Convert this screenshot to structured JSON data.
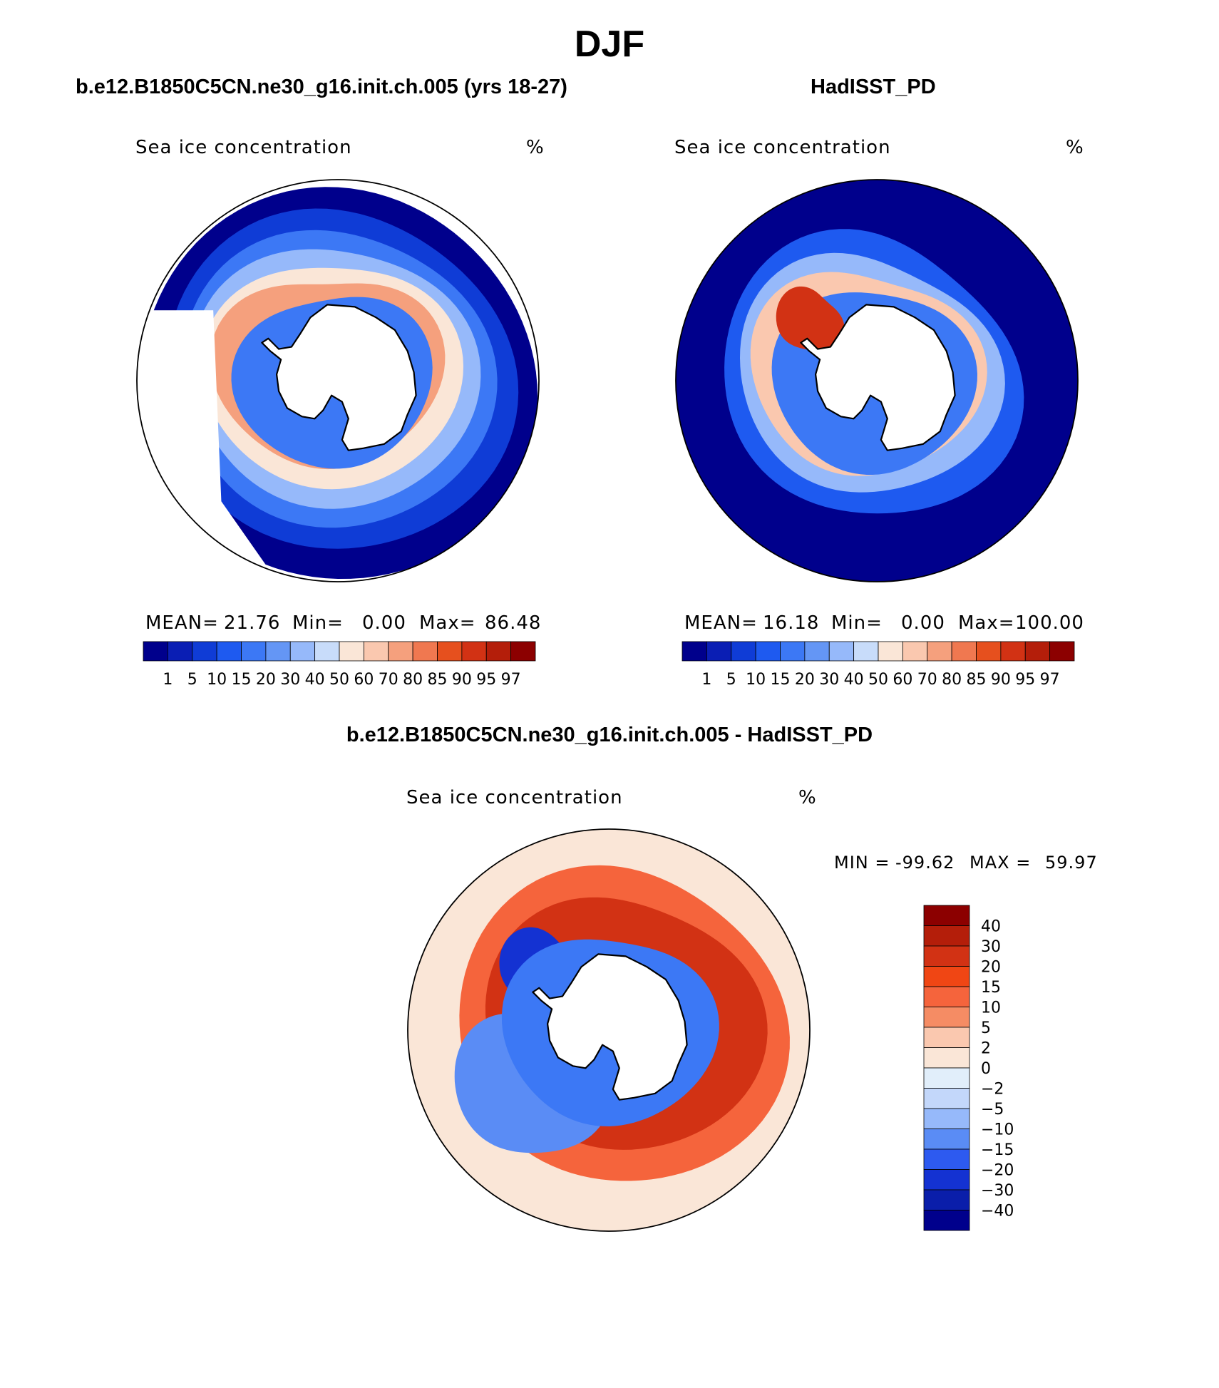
{
  "title": "DJF",
  "colors": {
    "continent": "#ffffff",
    "coastline": "#000000",
    "outside": "#ffffff"
  },
  "panels": [
    {
      "header": "b.e12.B1850C5CN.ne30_g16.init.ch.005 (yrs 18-27)",
      "variable": "Sea ice concentration",
      "units": "%",
      "stats": {
        "mean_label": "MEAN=",
        "mean": "21.76",
        "min_label": "Min=",
        "min": "0.00",
        "max_label": "Max=",
        "max": "86.48"
      },
      "colorbar_labels": [
        "1",
        "5",
        "10",
        "15",
        "20",
        "30",
        "40",
        "50",
        "60",
        "70",
        "80",
        "85",
        "90",
        "95",
        "97"
      ],
      "colorbar_colors": [
        "#00008c",
        "#0a1eb4",
        "#0f3cd6",
        "#1e5af0",
        "#3c78f5",
        "#6496f5",
        "#96b9fa",
        "#c8dcfa",
        "#fae6d7",
        "#fac8af",
        "#f5a07d",
        "#f07850",
        "#e6501e",
        "#d23214",
        "#b41e0a",
        "#8c0000"
      ]
    },
    {
      "header": "HadISST_PD",
      "variable": "Sea ice concentration",
      "units": "%",
      "stats": {
        "mean_label": "MEAN=",
        "mean": "16.18",
        "min_label": "Min=",
        "min": "0.00",
        "max_label": "Max=",
        "max": "100.00"
      },
      "colorbar_labels": [
        "1",
        "5",
        "10",
        "15",
        "20",
        "30",
        "40",
        "50",
        "60",
        "70",
        "80",
        "85",
        "90",
        "95",
        "97"
      ],
      "colorbar_colors": [
        "#00008c",
        "#0a1eb4",
        "#0f3cd6",
        "#1e5af0",
        "#3c78f5",
        "#6496f5",
        "#96b9fa",
        "#c8dcfa",
        "#fae6d7",
        "#fac8af",
        "#f5a07d",
        "#f07850",
        "#e6501e",
        "#d23214",
        "#b41e0a",
        "#8c0000"
      ]
    }
  ],
  "difference": {
    "header": "b.e12.B1850C5CN.ne30_g16.init.ch.005 - HadISST_PD",
    "variable": "Sea ice concentration",
    "units": "%",
    "min_label": "MIN =",
    "min": "-99.62",
    "max_label": "MAX =",
    "max": "59.97",
    "colorbar_labels": [
      "40",
      "30",
      "20",
      "15",
      "10",
      "5",
      "2",
      "0",
      "−2",
      "−5",
      "−10",
      "−15",
      "−20",
      "−30",
      "−40"
    ],
    "colorbar_colors": [
      "#8c0000",
      "#b41e0a",
      "#d23214",
      "#f04614",
      "#f5643c",
      "#f58c64",
      "#fac8af",
      "#fae6d7",
      "#e1eefa",
      "#c3d7fa",
      "#96b9fa",
      "#5a8cf5",
      "#2d5af0",
      "#1432d2",
      "#0a1eaa",
      "#00008c"
    ]
  }
}
